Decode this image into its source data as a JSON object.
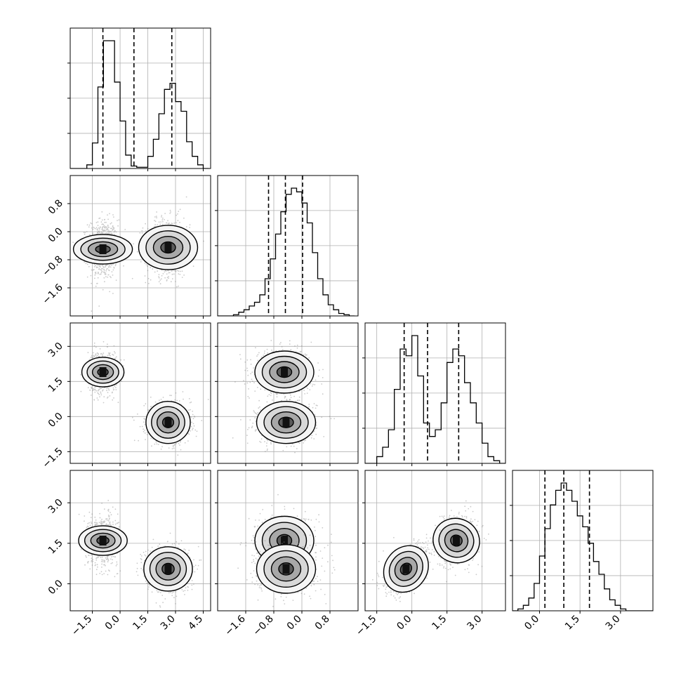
{
  "chart_data": {
    "type": "corner",
    "title": "",
    "grid": true,
    "parameters": 4,
    "axes": [
      {
        "lim": [
          -2.7,
          4.9
        ],
        "ticks": [
          -1.5,
          0.0,
          1.5,
          3.0,
          4.5
        ],
        "tick_labels": [
          "−1.5",
          "0.0",
          "1.5",
          "3.0",
          "4.5"
        ]
      },
      {
        "lim": [
          -2.4,
          1.6
        ],
        "ticks": [
          -1.6,
          -0.8,
          0.0,
          0.8
        ],
        "tick_labels": [
          "−1.6",
          "−0.8",
          "0.0",
          "0.8"
        ]
      },
      {
        "lim": [
          -2.0,
          4.0
        ],
        "ticks": [
          -1.5,
          0.0,
          1.5,
          3.0
        ],
        "tick_labels": [
          "−1.5",
          "0.0",
          "1.5",
          "3.0"
        ]
      },
      {
        "lim": [
          -1.0,
          4.2
        ],
        "ticks": [
          0.0,
          1.5,
          3.0
        ],
        "tick_labels": [
          "0.0",
          "1.5",
          "3.0"
        ]
      }
    ],
    "left_tick_labels": {
      "1": [
        "0.8",
        "0.0",
        "−0.8",
        "−1.6"
      ],
      "2": [
        "3.0",
        "1.5",
        "0.0",
        "−1.5"
      ],
      "3": [
        "3.0",
        "1.5",
        "0.0"
      ]
    },
    "left_tick_values": {
      "1": [
        0.8,
        0.0,
        -0.8,
        -1.6
      ],
      "2": [
        3.0,
        1.5,
        0.0,
        -1.5
      ],
      "3": [
        3.0,
        1.5,
        0.0
      ]
    },
    "histograms": [
      {
        "param": 0,
        "bins": [
          -2.7,
          -2.4,
          -2.1,
          -1.8,
          -1.5,
          -1.2,
          -0.9,
          -0.6,
          -0.3,
          0.0,
          0.3,
          0.6,
          0.9,
          1.2,
          1.5,
          1.8,
          2.1,
          2.4,
          2.7,
          3.0,
          3.3,
          3.6,
          3.9,
          4.2,
          4.5,
          4.8
        ],
        "counts": [
          0,
          0,
          0,
          3,
          21,
          67,
          105,
          105,
          71,
          39,
          11,
          2,
          1,
          1,
          10,
          24,
          45,
          65,
          70,
          55,
          47,
          22,
          10,
          3,
          0
        ],
        "quantiles": [
          -0.93,
          0.75,
          2.8
        ]
      },
      {
        "param": 1,
        "bins": [
          -2.4,
          -2.25,
          -2.1,
          -1.95,
          -1.8,
          -1.65,
          -1.5,
          -1.35,
          -1.2,
          -1.05,
          -0.9,
          -0.75,
          -0.6,
          -0.45,
          -0.3,
          -0.15,
          0.0,
          0.15,
          0.3,
          0.45,
          0.6,
          0.75,
          0.9,
          1.05,
          1.2,
          1.35,
          1.5
        ],
        "counts": [
          0,
          0,
          0,
          1,
          3,
          5,
          8,
          11,
          17,
          30,
          46,
          66,
          84,
          98,
          103,
          100,
          91,
          75,
          51,
          30,
          17,
          9,
          5,
          2,
          1,
          0
        ],
        "quantiles": [
          -0.95,
          -0.47,
          0.02
        ]
      },
      {
        "param": 2,
        "bins": [
          -2.0,
          -1.75,
          -1.5,
          -1.25,
          -1.0,
          -0.75,
          -0.5,
          -0.25,
          0.0,
          0.25,
          0.5,
          0.75,
          1.0,
          1.25,
          1.5,
          1.75,
          2.0,
          2.25,
          2.5,
          2.75,
          3.0,
          3.25,
          3.5,
          3.75,
          4.0
        ],
        "counts": [
          0,
          0,
          5,
          12,
          25,
          55,
          85,
          80,
          95,
          65,
          30,
          20,
          25,
          45,
          75,
          85,
          80,
          60,
          45,
          30,
          15,
          5,
          2,
          0
        ],
        "quantiles": [
          -0.33,
          0.67,
          2.0
        ]
      },
      {
        "param": 3,
        "bins": [
          -1.0,
          -0.8,
          -0.6,
          -0.4,
          -0.2,
          0.0,
          0.2,
          0.4,
          0.6,
          0.8,
          1.0,
          1.2,
          1.4,
          1.6,
          1.8,
          2.0,
          2.2,
          2.4,
          2.6,
          2.8,
          3.0,
          3.2,
          3.4,
          3.6,
          3.8,
          4.0,
          4.2
        ],
        "counts": [
          0,
          1,
          3,
          7,
          15,
          30,
          45,
          58,
          66,
          70,
          66,
          60,
          52,
          46,
          37,
          27,
          20,
          12,
          6,
          3,
          1,
          0,
          0,
          0,
          0,
          0
        ],
        "quantiles": [
          0.2,
          0.9,
          1.85
        ]
      }
    ],
    "mode_centers": [
      [
        -0.93,
        -0.5,
        1.9,
        1.6
      ],
      [
        2.6,
        -0.45,
        -0.25,
        0.55
      ]
    ],
    "mode_sigmas": [
      [
        0.4,
        0.42,
        0.45,
        0.45
      ],
      [
        0.6,
        0.42,
        0.45,
        0.45
      ]
    ],
    "mode_correlations": {
      "3-2": [
        0.15,
        0.55
      ]
    }
  }
}
